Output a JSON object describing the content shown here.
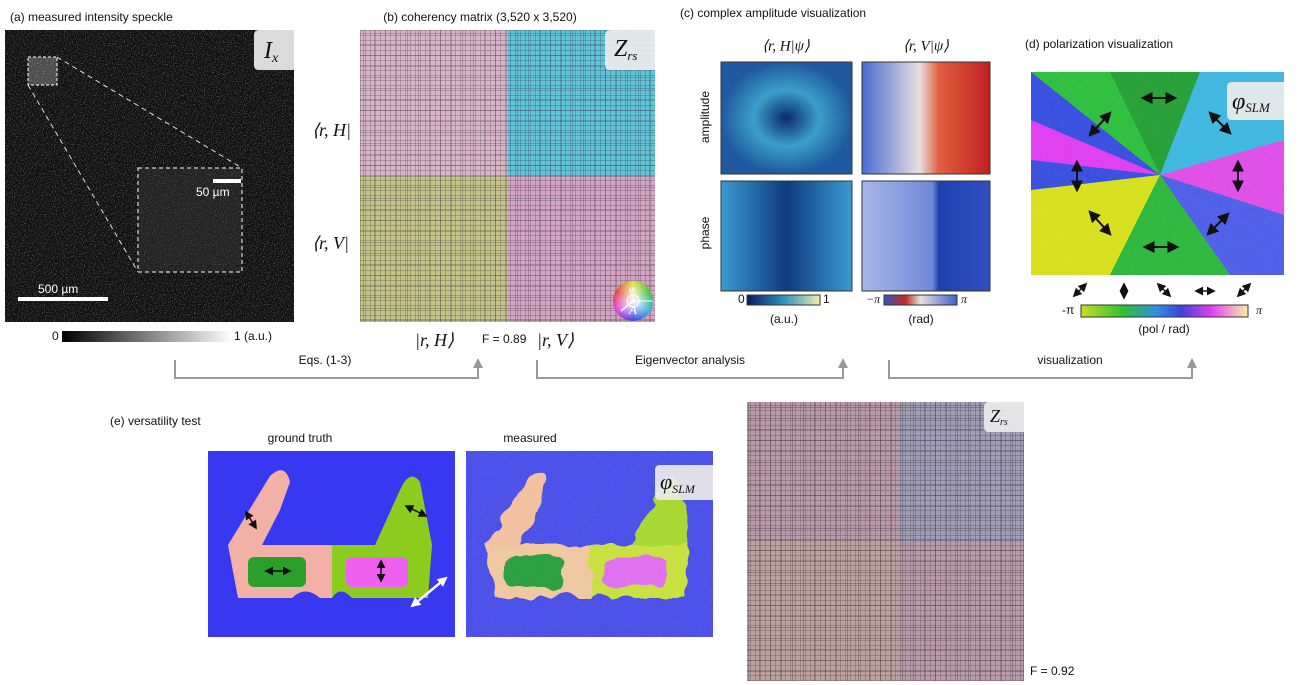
{
  "panel_a": {
    "title": "(a) measured intensity speckle",
    "label": {
      "symbol": "I",
      "subscript": "x"
    },
    "inset_scale": "50 µm",
    "scale": "500 µm",
    "colorbar": {
      "min": "0",
      "max": "1 (a.u.)"
    }
  },
  "panel_b": {
    "title": "(b) coherency matrix (3,520 x 3,520)",
    "label": {
      "symbol": "Z",
      "subscript": "rs"
    },
    "row_labels": [
      "⟨r, H|",
      "⟨r, V|"
    ],
    "column_labels": [
      "|r, H⟩",
      "|r, V⟩"
    ],
    "fidelity": "F = 0.89",
    "wheel": {
      "phase": "φ",
      "amplitude": "A"
    }
  },
  "panel_c": {
    "title": "(c) complex amplitude visualization",
    "columns": [
      "⟨r, H|ψ⟩",
      "⟨r, V|ψ⟩"
    ],
    "rows": [
      "amplitude",
      "phase"
    ],
    "amplitude_bar": {
      "min": "0",
      "max": "1",
      "unit": "(a.u.)"
    },
    "phase_bar": {
      "min": "−π",
      "max": "π",
      "unit": "(rad)"
    }
  },
  "panel_d": {
    "title": "(d) polarization visualization",
    "label": {
      "symbol": "φ",
      "subscript": "SLM"
    },
    "colorbar": {
      "min": "-π",
      "max": "π",
      "unit": "(pol / rad)"
    }
  },
  "flow": [
    "Eqs. (1-3)",
    "Eigenvector analysis",
    "visualization"
  ],
  "panel_e": {
    "title": "(e) versatility test",
    "ground_truth": "ground truth",
    "measured": "measured",
    "label": {
      "symbol": "φ",
      "subscript": "SLM"
    },
    "matrix_label": {
      "symbol": "Z",
      "subscript": "rs"
    },
    "fidelity": "F = 0.92"
  }
}
